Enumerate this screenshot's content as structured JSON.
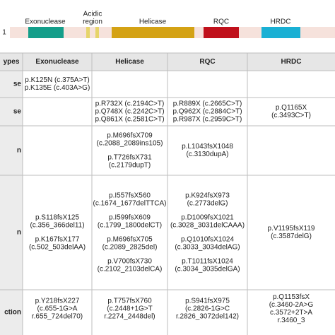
{
  "diagram": {
    "start_label": "1",
    "domains": [
      {
        "label": [
          "Exonuclease"
        ]
      },
      {
        "label": [
          "Acidic",
          "region"
        ]
      },
      {
        "label": [
          "Helicase"
        ]
      },
      {
        "label": [
          "RQC"
        ]
      },
      {
        "label": [
          "HRDC"
        ]
      }
    ]
  },
  "table": {
    "header": [
      "ypes",
      "Exonuclease",
      "Helicase",
      "RQC",
      "HRDC"
    ],
    "rows": [
      {
        "label": "se",
        "cells": [
          [
            [
              "p.K125N (c.375A>T)",
              "p.K135E (c.403A>G)"
            ]
          ],
          [],
          [],
          []
        ]
      },
      {
        "label": "se",
        "cells": [
          [],
          [
            [
              "p.R732X (c.2194C>T)",
              "p.Q748X (c.2242C>T)",
              "p.Q861X (c.2581C>T)"
            ]
          ],
          [
            [
              "p.R889X (c.2665C>T)",
              "p.Q962X (c.2884C>T)",
              "p.R987X (c.2959C>T)"
            ]
          ],
          [
            [
              "p.Q1165X",
              "(c.3493C>T)"
            ]
          ]
        ]
      },
      {
        "label": "n",
        "cells": [
          [],
          [
            [
              "p.M696fsX709",
              "(c.2088_2089ins105)"
            ],
            [
              "p.T726fsX731",
              "(c.2179dupT)"
            ]
          ],
          [
            [
              "p.L1043fsX1048",
              "(c.3130dupA)"
            ]
          ],
          []
        ]
      },
      {
        "label": "n",
        "cells": [
          [
            [
              "p.S118fsX125",
              "(c.356_366del11)"
            ],
            [
              "p.K167fsX177",
              "(c.502_503delAA)"
            ]
          ],
          [
            [
              "p.I557fsX560",
              "(c.1674_1677delTTCA)"
            ],
            [
              "p.I599fsX609",
              "(c.1799_1800delCT)"
            ],
            [
              "p.M696fsX705",
              "(c.2089_2825del)"
            ],
            [
              "p.V700fsX730",
              "(c.2102_2103delCA)"
            ]
          ],
          [
            [
              "p.K924fsX973",
              "(c.2773delG)"
            ],
            [
              "p.D1009fsX1021",
              "(c.3028_3031delCAAA)"
            ],
            [
              "p.Q1010fsX1024",
              "(c.3033_3034delAG)"
            ],
            [
              "p.T1011fsX1024",
              "(c.3034_3035delGA)"
            ]
          ],
          [
            [
              "p.V1195fsX119",
              "(c.3587delG)"
            ]
          ]
        ]
      },
      {
        "label": "ction",
        "cells": [
          [
            [
              "p.Y218fsX227",
              "(c.655-1G>A",
              "r.655_724del70)"
            ]
          ],
          [
            [
              "p.T757fsX760",
              "(c.2448+1G>T",
              "r.2274_2448del)"
            ]
          ],
          [
            [
              "p.S941fsX975",
              "(c.2826-1G>C",
              "r.2826_3072del142)"
            ]
          ],
          [
            [
              "p.Q1153fsX",
              "(c.3460-2A>G",
              "c.3572+2T>A",
              "r.3460_3"
            ]
          ]
        ]
      }
    ]
  }
}
